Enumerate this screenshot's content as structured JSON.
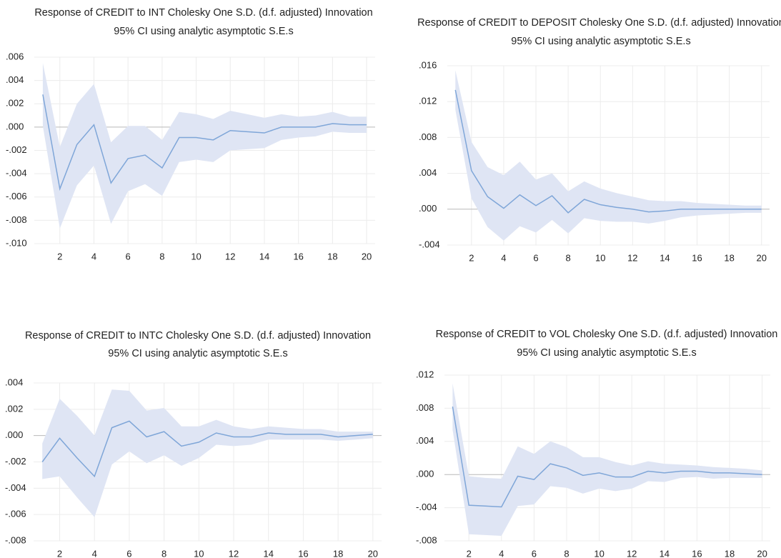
{
  "chart_data": [
    {
      "type": "line",
      "title": "Response of CREDIT to INT Cholesky One S.D. (d.f. adjusted) Innovation",
      "subtitle": "95% CI using analytic asymptotic S.E.s",
      "x": [
        1,
        2,
        3,
        4,
        5,
        6,
        7,
        8,
        9,
        10,
        11,
        12,
        13,
        14,
        15,
        16,
        17,
        18,
        19,
        20
      ],
      "xlim": [
        0.5,
        20.5
      ],
      "xticks": [
        2,
        4,
        6,
        8,
        10,
        12,
        14,
        16,
        18,
        20
      ],
      "ylim": [
        -0.01,
        0.006
      ],
      "yticks": [
        {
          "value": 0.006,
          "label": ".006"
        },
        {
          "value": 0.004,
          "label": ".004"
        },
        {
          "value": 0.002,
          "label": ".002"
        },
        {
          "value": 0,
          "label": ".000"
        },
        {
          "value": -0.002,
          "label": "-.002"
        },
        {
          "value": -0.004,
          "label": "-.004"
        },
        {
          "value": -0.006,
          "label": "-.006"
        },
        {
          "value": -0.008,
          "label": "-.008"
        },
        {
          "value": -0.01,
          "label": "-.010"
        }
      ],
      "grid": true,
      "series": [
        {
          "color": "#7fa6d8",
          "values": [
            0.0028,
            -0.0053,
            -0.0015,
            0.0002,
            -0.0048,
            -0.0027,
            -0.0024,
            -0.0035,
            -0.0009,
            -0.0009,
            -0.0011,
            -0.0003,
            -0.0004,
            -0.0005,
            0.0,
            0.0,
            0.0,
            0.0003,
            0.0002,
            0.0002
          ]
        }
      ],
      "band": {
        "color": "#dfe5f4",
        "upper": [
          0.0055,
          -0.0017,
          0.002,
          0.0037,
          -0.0013,
          0.0001,
          0.0001,
          -0.0011,
          0.0013,
          0.0011,
          0.0007,
          0.0014,
          0.0011,
          0.0008,
          0.0011,
          0.0009,
          0.001,
          0.0013,
          0.0009,
          0.0009
        ],
        "lower": [
          0.0001,
          -0.0087,
          -0.005,
          -0.0033,
          -0.0083,
          -0.0055,
          -0.0049,
          -0.0059,
          -0.003,
          -0.0028,
          -0.003,
          -0.002,
          -0.0019,
          -0.0018,
          -0.0011,
          -0.0009,
          -0.0008,
          -0.0004,
          -0.0005,
          -0.0005
        ]
      }
    },
    {
      "type": "line",
      "title": "Response of CREDIT to DEPOSIT Cholesky One S.D. (d.f. adjusted) Innovation",
      "subtitle": "95% CI using analytic asymptotic S.E.s",
      "x": [
        1,
        2,
        3,
        4,
        5,
        6,
        7,
        8,
        9,
        10,
        11,
        12,
        13,
        14,
        15,
        16,
        17,
        18,
        19,
        20
      ],
      "xlim": [
        0.5,
        20.5
      ],
      "xticks": [
        2,
        4,
        6,
        8,
        10,
        12,
        14,
        16,
        18,
        20
      ],
      "ylim": [
        -0.004,
        0.016
      ],
      "yticks": [
        {
          "value": 0.016,
          "label": ".016"
        },
        {
          "value": 0.012,
          "label": ".012"
        },
        {
          "value": 0.008,
          "label": ".008"
        },
        {
          "value": 0.004,
          "label": ".004"
        },
        {
          "value": 0,
          "label": ".000"
        },
        {
          "value": -0.004,
          "label": "-.004"
        }
      ],
      "grid": true,
      "series": [
        {
          "color": "#7fa6d8",
          "values": [
            0.0133,
            0.0043,
            0.0014,
            0.0001,
            0.0016,
            0.0004,
            0.0015,
            -0.0004,
            0.0011,
            0.0005,
            0.0002,
            0.0,
            -0.0003,
            -0.0002,
            0.0,
            0.0,
            0.0,
            0.0,
            0.0,
            0.0
          ]
        }
      ],
      "band": {
        "color": "#dfe5f4",
        "upper": [
          0.0155,
          0.0075,
          0.0047,
          0.0038,
          0.0053,
          0.0033,
          0.004,
          0.002,
          0.0031,
          0.0023,
          0.0018,
          0.0014,
          0.001,
          0.0009,
          0.0009,
          0.0007,
          0.0006,
          0.0005,
          0.0004,
          0.0004
        ],
        "lower": [
          0.0111,
          0.0012,
          -0.002,
          -0.0035,
          -0.0019,
          -0.0026,
          -0.0012,
          -0.0027,
          -0.001,
          -0.0013,
          -0.0014,
          -0.0014,
          -0.0016,
          -0.0013,
          -0.0009,
          -0.0007,
          -0.0006,
          -0.0005,
          -0.0004,
          -0.0004
        ]
      }
    },
    {
      "type": "line",
      "title": "Response of CREDIT to INTC Cholesky One S.D. (d.f. adjusted) Innovation",
      "subtitle": "95% CI using analytic asymptotic S.E.s",
      "x": [
        1,
        2,
        3,
        4,
        5,
        6,
        7,
        8,
        9,
        10,
        11,
        12,
        13,
        14,
        15,
        16,
        17,
        18,
        19,
        20
      ],
      "xlim": [
        0.5,
        20.5
      ],
      "xticks": [
        2,
        4,
        6,
        8,
        10,
        12,
        14,
        16,
        18,
        20
      ],
      "ylim": [
        -0.008,
        0.004
      ],
      "yticks": [
        {
          "value": 0.004,
          "label": ".004"
        },
        {
          "value": 0.002,
          "label": ".002"
        },
        {
          "value": 0,
          "label": ".000"
        },
        {
          "value": -0.002,
          "label": "-.002"
        },
        {
          "value": -0.004,
          "label": "-.004"
        },
        {
          "value": -0.006,
          "label": "-.006"
        },
        {
          "value": -0.008,
          "label": "-.008"
        }
      ],
      "grid": true,
      "series": [
        {
          "color": "#7fa6d8",
          "values": [
            -0.002,
            -0.0002,
            -0.0017,
            -0.0031,
            0.0006,
            0.0011,
            -0.0001,
            0.0003,
            -0.0008,
            -0.0005,
            0.0002,
            -0.0001,
            -0.0001,
            0.0002,
            0.0001,
            0.0001,
            0.0001,
            -0.0001,
            0.0,
            0.0001
          ]
        }
      ],
      "band": {
        "color": "#dfe5f4",
        "upper": [
          -0.0006,
          0.0028,
          0.0015,
          0.0,
          0.0035,
          0.0034,
          0.0019,
          0.0021,
          0.0007,
          0.0007,
          0.0012,
          0.0007,
          0.0005,
          0.0007,
          0.0006,
          0.0005,
          0.0005,
          0.0003,
          0.0003,
          0.0003
        ],
        "lower": [
          -0.0033,
          -0.0031,
          -0.0047,
          -0.0062,
          -0.0022,
          -0.0012,
          -0.0021,
          -0.0015,
          -0.0023,
          -0.0017,
          -0.0007,
          -0.0008,
          -0.0007,
          -0.0003,
          -0.0003,
          -0.0003,
          -0.0003,
          -0.0004,
          -0.0003,
          -0.0002
        ]
      }
    },
    {
      "type": "line",
      "title": "Response of CREDIT to VOL Cholesky One S.D. (d.f. adjusted) Innovation",
      "subtitle": "95% CI using analytic asymptotic S.E.s",
      "x": [
        1,
        2,
        3,
        4,
        5,
        6,
        7,
        8,
        9,
        10,
        11,
        12,
        13,
        14,
        15,
        16,
        17,
        18,
        19,
        20
      ],
      "xlim": [
        0.5,
        20.5
      ],
      "xticks": [
        2,
        4,
        6,
        8,
        10,
        12,
        14,
        16,
        18,
        20
      ],
      "ylim": [
        -0.008,
        0.012
      ],
      "yticks": [
        {
          "value": 0.012,
          "label": ".012"
        },
        {
          "value": 0.008,
          "label": ".008"
        },
        {
          "value": 0.004,
          "label": ".004"
        },
        {
          "value": 0,
          "label": ".000"
        },
        {
          "value": -0.004,
          "label": "-.004"
        },
        {
          "value": -0.008,
          "label": "-.008"
        }
      ],
      "grid": true,
      "series": [
        {
          "color": "#7fa6d8",
          "values": [
            0.0082,
            -0.0037,
            -0.0038,
            -0.0039,
            -0.0002,
            -0.0006,
            0.0013,
            0.0008,
            -0.0001,
            0.0002,
            -0.0003,
            -0.0003,
            0.0004,
            0.0002,
            0.0004,
            0.0004,
            0.0002,
            0.0002,
            0.0001,
            0.0
          ]
        }
      ],
      "band": {
        "color": "#dfe5f4",
        "upper": [
          0.011,
          -0.0002,
          -0.0004,
          -0.0005,
          0.0034,
          0.0025,
          0.004,
          0.0033,
          0.0021,
          0.0021,
          0.0015,
          0.0011,
          0.0016,
          0.0013,
          0.0012,
          0.0011,
          0.0009,
          0.0008,
          0.0007,
          0.0005
        ],
        "lower": [
          0.0054,
          -0.0072,
          -0.0073,
          -0.0074,
          -0.0038,
          -0.0036,
          -0.0014,
          -0.0016,
          -0.0023,
          -0.0017,
          -0.002,
          -0.0017,
          -0.0008,
          -0.0009,
          -0.0004,
          -0.0003,
          -0.0005,
          -0.0004,
          -0.0004,
          -0.0004
        ]
      }
    }
  ]
}
